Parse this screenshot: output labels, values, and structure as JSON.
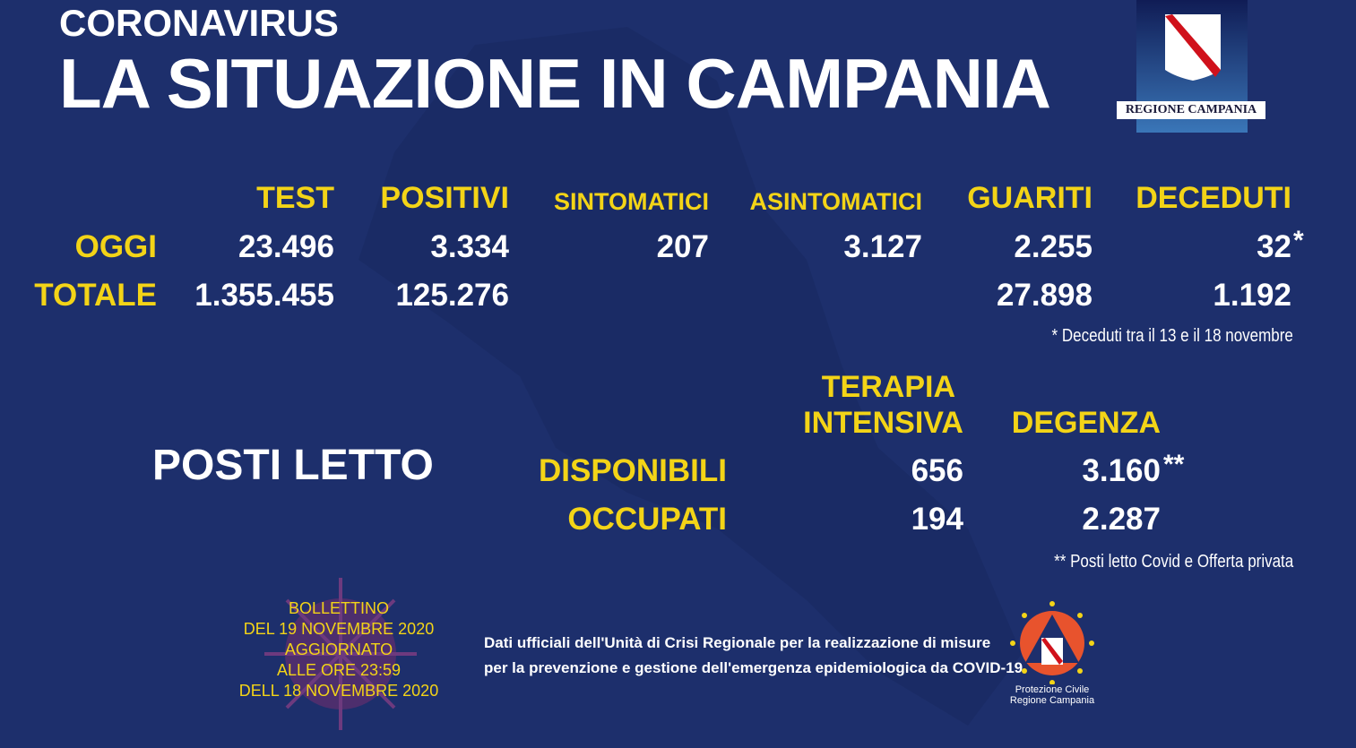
{
  "header": {
    "kicker": "CORONAVIRUS",
    "title": "LA SITUAZIONE IN CAMPANIA",
    "logo_text": "REGIONE CAMPANIA"
  },
  "stats": {
    "columns": [
      "TEST",
      "POSITIVI",
      "SINTOMATICI",
      "ASINTOMATICI",
      "GUARITI",
      "DECEDUTI"
    ],
    "rows": [
      {
        "label": "OGGI",
        "values": [
          "23.496",
          "3.334",
          "207",
          "3.127",
          "2.255",
          "32"
        ],
        "death_marker": "*"
      },
      {
        "label": "TOTALE",
        "values": [
          "1.355.455",
          "125.276",
          "",
          "",
          "27.898",
          "1.192"
        ]
      }
    ],
    "footnote": "* Deceduti tra il 13 e il 18 novembre"
  },
  "beds": {
    "title": "POSTI LETTO",
    "columns": [
      "TERAPIA",
      "INTENSIVA",
      "DEGENZA"
    ],
    "rows": [
      {
        "label": "DISPONIBILI",
        "values": [
          "656",
          "3.160"
        ],
        "marker": "**"
      },
      {
        "label": "OCCUPATI",
        "values": [
          "194",
          "2.287"
        ]
      }
    ],
    "footnote": "** Posti letto Covid e Offerta privata"
  },
  "bulletin": [
    "BOLLETTINO",
    "DEL 19 NOVEMBRE 2020",
    "AGGIORNATO",
    "ALLE ORE 23:59",
    "DELL 18 NOVEMBRE 2020"
  ],
  "source": [
    "Dati ufficiali dell'Unità di Crisi Regionale per la realizzazione di misure",
    "per la prevenzione e gestione dell'emergenza epidemiologica da COVID-19"
  ],
  "protezione": [
    "Protezione Civile",
    "Regione Campania"
  ],
  "colors": {
    "background": "#1d2f6c",
    "accent": "#f3d417",
    "text": "#ffffff"
  }
}
